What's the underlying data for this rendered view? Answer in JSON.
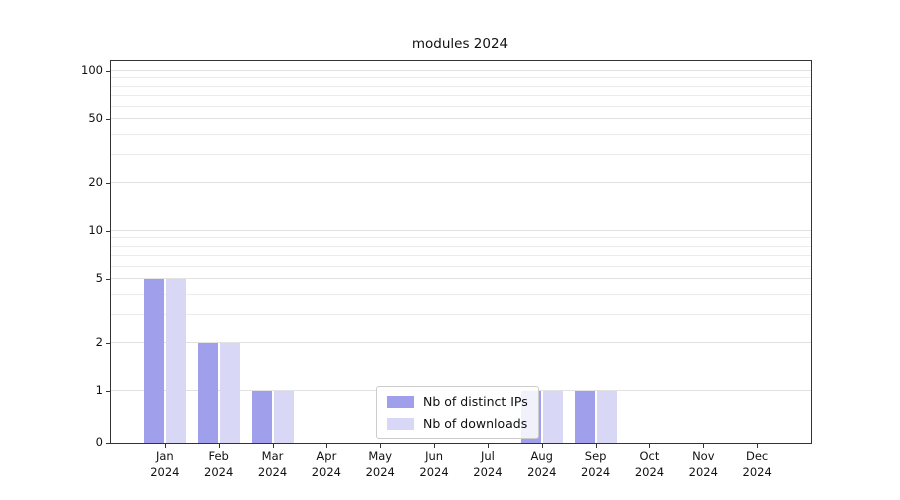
{
  "chart_data": {
    "type": "bar",
    "title": "modules 2024",
    "categories": [
      "Jan\n2024",
      "Feb\n2024",
      "Mar\n2024",
      "Apr\n2024",
      "May\n2024",
      "Jun\n2024",
      "Jul\n2024",
      "Aug\n2024",
      "Sep\n2024",
      "Oct\n2024",
      "Nov\n2024",
      "Dec\n2024"
    ],
    "series": [
      {
        "key": "distinct-ips",
        "name": "Nb of distinct IPs",
        "color": "#9f9fec",
        "values": [
          5,
          2,
          1,
          0,
          0,
          0,
          0,
          1,
          1,
          0,
          0,
          0
        ]
      },
      {
        "key": "downloads",
        "name": "Nb of downloads",
        "color": "#d8d8f6",
        "values": [
          5,
          2,
          1,
          0,
          0,
          0,
          0,
          1,
          1,
          0,
          0,
          0
        ]
      }
    ],
    "yticks": [
      0,
      1,
      2,
      5,
      10,
      20,
      50,
      100
    ],
    "ylim": [
      0,
      115
    ],
    "yscale": "symlog",
    "xlabel": "",
    "ylabel": "",
    "grid": "horizontal-minor",
    "legend_position": "lower center"
  }
}
